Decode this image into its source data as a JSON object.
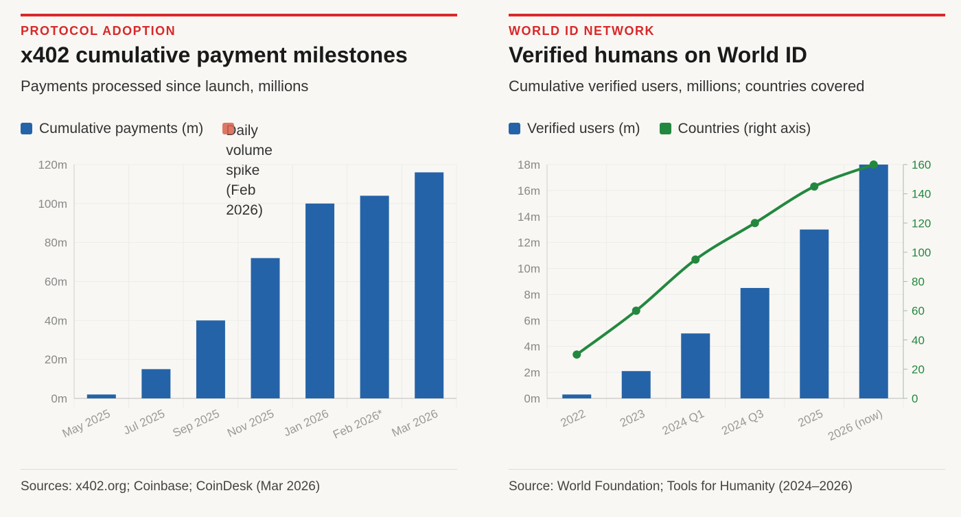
{
  "left": {
    "kicker": "PROTOCOL ADOPTION",
    "title": "x402 cumulative payment milestones",
    "subtitle": "Payments processed since launch, millions",
    "source": "Sources: x402.org; Coinbase; CoinDesk (Mar 2026)"
  },
  "right": {
    "kicker": "WORLD ID NETWORK",
    "title": "Verified humans on World ID",
    "subtitle": "Cumulative verified users, millions; countries covered",
    "source": "Source: World Foundation; Tools for Humanity (2024–2026)"
  },
  "chart_data": [
    {
      "type": "bar",
      "categories": [
        "May 2025",
        "Jul 2025",
        "Sep 2025",
        "Nov 2025",
        "Jan 2026",
        "Feb 2026*",
        "Mar 2026"
      ],
      "series": [
        {
          "name": "Cumulative payments (m)",
          "values": [
            2,
            15,
            40,
            72,
            100,
            104,
            116
          ],
          "color": "#2563a8"
        }
      ],
      "legend": [
        {
          "label": "Cumulative payments (m)",
          "color": "#2563a8"
        },
        {
          "label": "Daily volume spike (Feb 2026)",
          "color": "#d9604a"
        }
      ],
      "ylim": [
        0,
        120
      ],
      "yticks": [
        0,
        20,
        40,
        60,
        80,
        100,
        120
      ],
      "ytick_labels": [
        "0m",
        "20m",
        "40m",
        "60m",
        "80m",
        "100m",
        "120m"
      ],
      "grid": true
    },
    {
      "type": "bar+line",
      "categories": [
        "2022",
        "2023",
        "2024 Q1",
        "2024 Q3",
        "2025",
        "2026 (now)"
      ],
      "series": [
        {
          "name": "Verified users (m)",
          "values": [
            0.3,
            2.1,
            5,
            8.5,
            13,
            18
          ],
          "color": "#2563a8",
          "axis": "left"
        },
        {
          "name": "Countries (right axis)",
          "values": [
            30,
            60,
            95,
            120,
            145,
            160
          ],
          "color": "#23883f",
          "axis": "right"
        }
      ],
      "legend": [
        {
          "label": "Verified users (m)",
          "color": "#2563a8"
        },
        {
          "label": "Countries (right axis)",
          "color": "#23883f"
        }
      ],
      "ylim": [
        0,
        18
      ],
      "yticks": [
        0,
        2,
        4,
        6,
        8,
        10,
        12,
        14,
        16,
        18
      ],
      "ytick_labels": [
        "0m",
        "2m",
        "4m",
        "6m",
        "8m",
        "10m",
        "12m",
        "14m",
        "16m",
        "18m"
      ],
      "y2lim": [
        0,
        160
      ],
      "y2ticks": [
        0,
        20,
        40,
        60,
        80,
        100,
        120,
        140,
        160
      ],
      "y2tick_labels": [
        "0",
        "20",
        "40",
        "60",
        "80",
        "100",
        "120",
        "140",
        "160"
      ],
      "grid": true
    }
  ]
}
